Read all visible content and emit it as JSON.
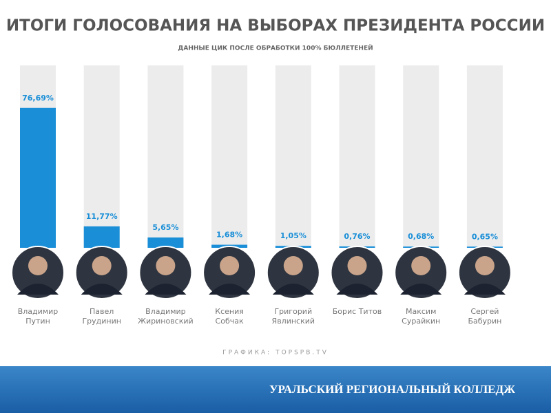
{
  "chart_data": {
    "type": "bar",
    "title": "ИТОГИ ГОЛОСОВАНИЯ НА ВЫБОРАХ ПРЕЗИДЕНТА РОССИИ",
    "subtitle": "ДАННЫЕ ЦИК ПОСЛЕ ОБРАБОТКИ 100% БЮЛЛЕТЕНЕЙ",
    "categories": [
      "Владимир Путин",
      "Павел Грудинин",
      "Владимир Жириновский",
      "Ксения Собчак",
      "Григорий Явлинский",
      "Борис Титов",
      "Максим Сурайкин",
      "Сергей Бабурин"
    ],
    "values": [
      76.69,
      11.77,
      5.65,
      1.68,
      1.05,
      0.76,
      0.68,
      0.65
    ],
    "value_labels": [
      "76,69%",
      "11,77%",
      "5,65%",
      "1,68%",
      "1,05%",
      "0,76%",
      "0,68%",
      "0,65%"
    ],
    "color": "#1a8fd8",
    "ylim": [
      0,
      100
    ],
    "source": "ГРАФИКА: TOPSPB.TV",
    "footer": "УРАЛЬСКИЙ РЕГИОНАЛЬНЫЙ КОЛЛЕДЖ"
  }
}
